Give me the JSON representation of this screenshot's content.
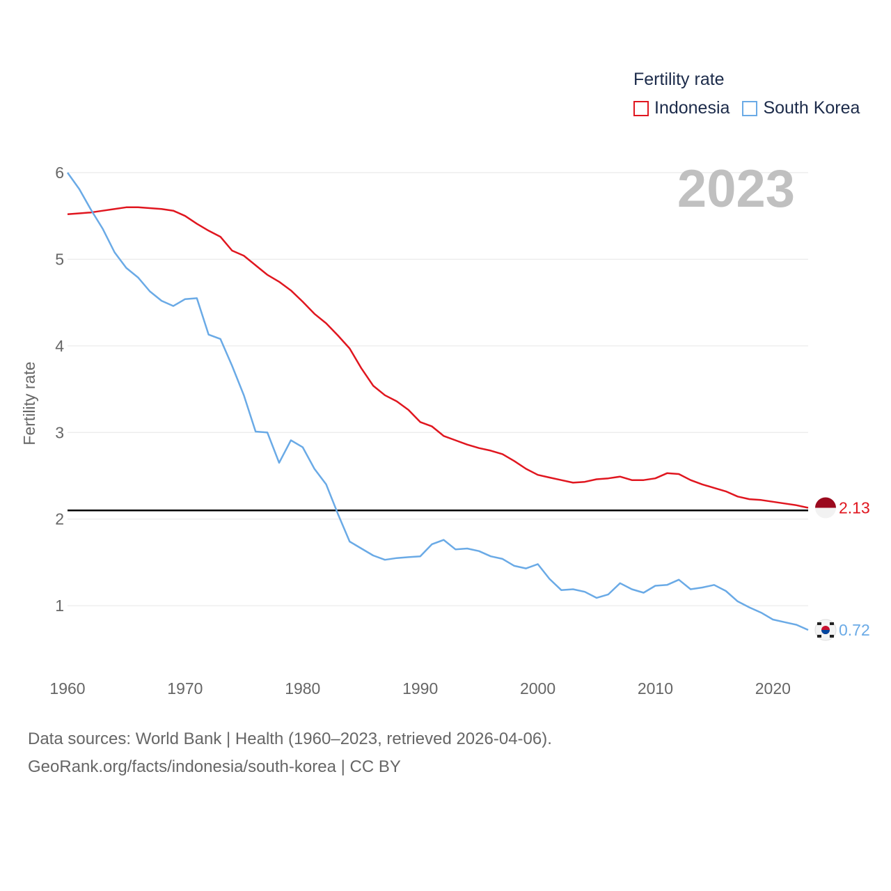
{
  "legend": {
    "title": "Fertility rate",
    "items": [
      {
        "label": "Indonesia",
        "color": "#e0161f"
      },
      {
        "label": "South Korea",
        "color": "#6aaae6"
      }
    ]
  },
  "year_badge": "2023",
  "footer": {
    "line1": "Data sources: World Bank | Health (1960–2023, retrieved 2026-04-06).",
    "line2": "GeoRank.org/facts/indonesia/south-korea | CC BY"
  },
  "chart_data": {
    "type": "line",
    "title": "",
    "xlabel": "",
    "ylabel": "Fertility rate",
    "xlim": [
      1960,
      2023
    ],
    "ylim": [
      0.35,
      6
    ],
    "x_ticks": [
      1960,
      1970,
      1980,
      1990,
      2000,
      2010,
      2020
    ],
    "y_ticks": [
      1,
      2,
      3,
      4,
      5,
      6
    ],
    "reference_line": {
      "y": 2.1,
      "color": "#000000"
    },
    "x": [
      1960,
      1961,
      1962,
      1963,
      1964,
      1965,
      1966,
      1967,
      1968,
      1969,
      1970,
      1971,
      1972,
      1973,
      1974,
      1975,
      1976,
      1977,
      1978,
      1979,
      1980,
      1981,
      1982,
      1983,
      1984,
      1985,
      1986,
      1987,
      1988,
      1989,
      1990,
      1991,
      1992,
      1993,
      1994,
      1995,
      1996,
      1997,
      1998,
      1999,
      2000,
      2001,
      2002,
      2003,
      2004,
      2005,
      2006,
      2007,
      2008,
      2009,
      2010,
      2011,
      2012,
      2013,
      2014,
      2015,
      2016,
      2017,
      2018,
      2019,
      2020,
      2021,
      2022,
      2023
    ],
    "series": [
      {
        "name": "Indonesia",
        "color": "#e0161f",
        "end_label": "2.13",
        "values": [
          5.52,
          5.53,
          5.54,
          5.56,
          5.58,
          5.6,
          5.6,
          5.59,
          5.58,
          5.56,
          5.5,
          5.41,
          5.33,
          5.26,
          5.1,
          5.04,
          4.93,
          4.82,
          4.74,
          4.64,
          4.51,
          4.37,
          4.26,
          4.12,
          3.97,
          3.74,
          3.54,
          3.43,
          3.36,
          3.26,
          3.12,
          3.07,
          2.96,
          2.91,
          2.86,
          2.82,
          2.79,
          2.75,
          2.67,
          2.58,
          2.51,
          2.48,
          2.45,
          2.42,
          2.43,
          2.46,
          2.47,
          2.49,
          2.45,
          2.45,
          2.47,
          2.53,
          2.52,
          2.45,
          2.4,
          2.36,
          2.32,
          2.26,
          2.23,
          2.22,
          2.2,
          2.18,
          2.16,
          2.13
        ]
      },
      {
        "name": "South Korea",
        "color": "#6aaae6",
        "end_label": "0.72",
        "values": [
          6.0,
          5.81,
          5.57,
          5.35,
          5.08,
          4.9,
          4.79,
          4.63,
          4.52,
          4.46,
          4.54,
          4.55,
          4.13,
          4.08,
          3.77,
          3.43,
          3.01,
          3.0,
          2.65,
          2.91,
          2.83,
          2.58,
          2.4,
          2.06,
          1.74,
          1.66,
          1.58,
          1.53,
          1.55,
          1.56,
          1.57,
          1.71,
          1.76,
          1.65,
          1.66,
          1.63,
          1.57,
          1.54,
          1.46,
          1.43,
          1.48,
          1.31,
          1.18,
          1.19,
          1.16,
          1.09,
          1.13,
          1.26,
          1.19,
          1.15,
          1.23,
          1.24,
          1.3,
          1.19,
          1.21,
          1.24,
          1.17,
          1.05,
          0.98,
          0.92,
          0.84,
          0.81,
          0.78,
          0.72
        ]
      }
    ]
  }
}
